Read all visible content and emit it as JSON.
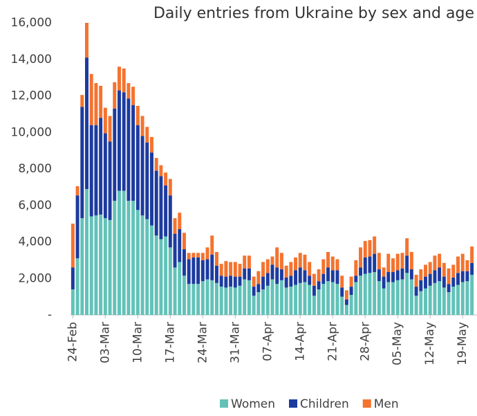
{
  "chart_data": {
    "type": "stacked_bar",
    "title": "Daily entries from Ukraine by sex and age",
    "categories": [
      "24-Feb",
      null,
      null,
      null,
      null,
      null,
      null,
      "03-Mar",
      null,
      null,
      null,
      null,
      null,
      null,
      "10-Mar",
      null,
      null,
      null,
      null,
      null,
      null,
      "17-Mar",
      null,
      null,
      null,
      null,
      null,
      null,
      "24-Mar",
      null,
      null,
      null,
      null,
      null,
      null,
      "31-Mar",
      null,
      null,
      null,
      null,
      null,
      null,
      "07-Apr",
      null,
      null,
      null,
      null,
      null,
      null,
      "14-Apr",
      null,
      null,
      null,
      null,
      null,
      null,
      "21-Apr",
      null,
      null,
      null,
      null,
      null,
      null,
      "28-Apr",
      null,
      null,
      null,
      null,
      null,
      null,
      "05-May",
      null,
      null,
      null,
      null,
      null,
      null,
      "12-May",
      null,
      null,
      null,
      null,
      null,
      null,
      "19-May",
      null,
      null
    ],
    "series": [
      {
        "name": "Women",
        "color": "#62c2b8",
        "values": [
          1400,
          3100,
          5300,
          6900,
          5400,
          5450,
          5500,
          5300,
          5200,
          6250,
          6800,
          6800,
          6250,
          6250,
          5750,
          5450,
          5250,
          4900,
          4350,
          4150,
          4300,
          3700,
          2600,
          2900,
          2150,
          1700,
          1700,
          1700,
          1850,
          1950,
          1900,
          1750,
          1550,
          1500,
          1550,
          1500,
          1600,
          1950,
          1900,
          1050,
          1250,
          1400,
          1600,
          1950,
          1700,
          1900,
          1500,
          1550,
          1650,
          1750,
          1800,
          1650,
          1050,
          1400,
          1700,
          1850,
          1800,
          1700,
          1000,
          550,
          1100,
          1800,
          2150,
          2250,
          2300,
          2350,
          1850,
          1450,
          1800,
          1800,
          1900,
          1950,
          2300,
          1950,
          1050,
          1300,
          1450,
          1600,
          1750,
          1850,
          1500,
          1250,
          1550,
          1650,
          1800,
          1850,
          2200
        ]
      },
      {
        "name": "Children",
        "color": "#1c3b9f",
        "values": [
          1200,
          3450,
          6100,
          7200,
          5000,
          4950,
          5300,
          4650,
          4300,
          5050,
          5500,
          5400,
          5600,
          5250,
          4650,
          4350,
          4200,
          4000,
          3550,
          3450,
          2800,
          2850,
          1850,
          1800,
          1450,
          1350,
          1450,
          1450,
          1150,
          1100,
          1400,
          950,
          600,
          600,
          600,
          600,
          500,
          600,
          650,
          500,
          450,
          700,
          700,
          800,
          900,
          600,
          550,
          600,
          800,
          850,
          650,
          500,
          550,
          450,
          550,
          750,
          650,
          750,
          500,
          300,
          450,
          350,
          450,
          900,
          900,
          1000,
          650,
          650,
          550,
          550,
          550,
          600,
          950,
          550,
          500,
          600,
          650,
          650,
          700,
          750,
          600,
          450,
          500,
          650,
          600,
          550,
          650
        ]
      },
      {
        "name": "Men",
        "color": "#f4732f",
        "values": [
          2400,
          500,
          650,
          1900,
          2800,
          2300,
          1750,
          1400,
          1400,
          1450,
          1300,
          1300,
          850,
          1000,
          1050,
          1100,
          850,
          850,
          700,
          600,
          700,
          900,
          850,
          900,
          900,
          350,
          250,
          250,
          400,
          650,
          1050,
          750,
          650,
          850,
          750,
          800,
          700,
          700,
          700,
          550,
          700,
          800,
          750,
          450,
          1100,
          900,
          650,
          750,
          700,
          800,
          850,
          750,
          650,
          650,
          800,
          850,
          750,
          600,
          650,
          500,
          550,
          850,
          1100,
          900,
          900,
          950,
          900,
          500,
          1000,
          750,
          900,
          850,
          950,
          950,
          650,
          600,
          650,
          650,
          800,
          750,
          750,
          850,
          700,
          900,
          950,
          600,
          900
        ]
      }
    ],
    "ylim": [
      0,
      16000
    ],
    "yticks": [
      {
        "value": 0,
        "label": "-"
      },
      {
        "value": 2000,
        "label": "2,000"
      },
      {
        "value": 4000,
        "label": "4,000"
      },
      {
        "value": 6000,
        "label": "6,000"
      },
      {
        "value": 8000,
        "label": "8,000"
      },
      {
        "value": 10000,
        "label": "10,000"
      },
      {
        "value": 12000,
        "label": "12,000"
      },
      {
        "value": 14000,
        "label": "14,000"
      },
      {
        "value": 16000,
        "label": "16,000"
      }
    ],
    "grid": false,
    "legend": "bottom"
  }
}
